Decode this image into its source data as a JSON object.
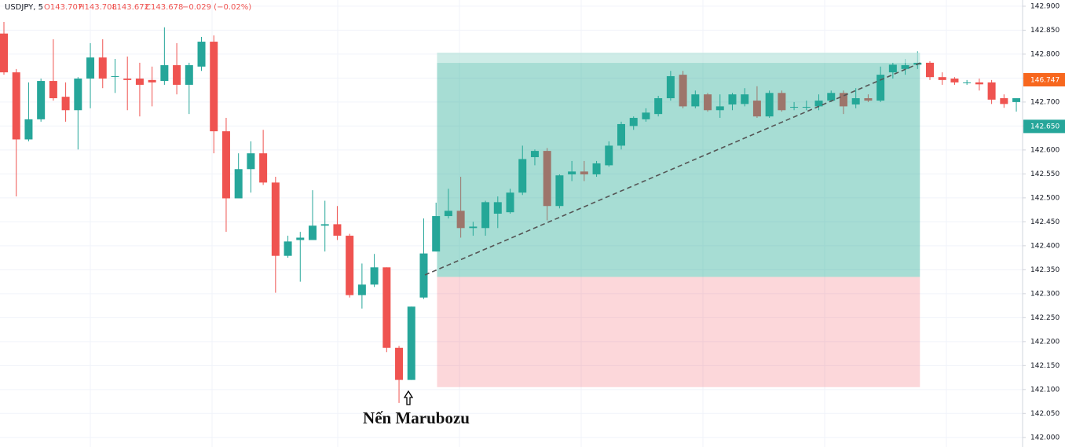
{
  "header": {
    "symbol": "USDJPY, 5",
    "open": "O143.707",
    "high": "H143.708",
    "low": "L143.672",
    "close": "C143.678",
    "change": "−0.029 (−0.02%)"
  },
  "current_price_tag": "146.747",
  "chart_data": {
    "type": "candlestick",
    "annotation": "Nến Marubozu",
    "up_color": "#26a69a",
    "down_color": "#ef5350",
    "ylim": [
      141.98,
      142.913
    ],
    "yticks": [
      {
        "value": 142,
        "label": "142.000"
      },
      {
        "value": 142.05,
        "label": "142.050"
      },
      {
        "value": 142.1,
        "label": "142.100"
      },
      {
        "value": 142.15,
        "label": "142.150"
      },
      {
        "value": 142.2,
        "label": "142.200"
      },
      {
        "value": 142.25,
        "label": "142.250"
      },
      {
        "value": 142.3,
        "label": "142.300"
      },
      {
        "value": 142.35,
        "label": "142.350"
      },
      {
        "value": 142.4,
        "label": "142.400"
      },
      {
        "value": 142.45,
        "label": "142.450"
      },
      {
        "value": 142.5,
        "label": "142.500"
      },
      {
        "value": 142.55,
        "label": "142.550"
      },
      {
        "value": 142.6,
        "label": "142.600"
      },
      {
        "value": 142.65,
        "label": "142.650"
      },
      {
        "value": 142.7,
        "label": "142.700"
      },
      {
        "value": 142.75,
        "label": "142.750"
      },
      {
        "value": 142.8,
        "label": "142.800"
      },
      {
        "value": 142.85,
        "label": "142.850"
      },
      {
        "value": 142.9,
        "label": "142.900"
      }
    ],
    "grid": true,
    "price_tag": {
      "value": 142.65,
      "label": "142.650",
      "color": "#26a69a"
    },
    "position": {
      "target": 142.803,
      "entry": 142.335,
      "stop": 142.105
    },
    "ohlc": [
      [
        142.843,
        142.867,
        142.757,
        142.762
      ],
      [
        142.762,
        142.769,
        142.503,
        142.622
      ],
      [
        142.622,
        142.741,
        142.618,
        142.664
      ],
      [
        142.664,
        142.749,
        142.659,
        142.744
      ],
      [
        142.744,
        142.831,
        142.703,
        142.708
      ],
      [
        142.711,
        142.741,
        142.659,
        142.683
      ],
      [
        142.683,
        142.752,
        142.601,
        142.749
      ],
      [
        142.749,
        142.823,
        142.687,
        142.793
      ],
      [
        142.793,
        142.831,
        142.729,
        142.749
      ],
      [
        142.754,
        142.79,
        142.719,
        142.754
      ],
      [
        142.749,
        142.795,
        142.683,
        142.746
      ],
      [
        142.749,
        142.782,
        142.67,
        142.736
      ],
      [
        142.746,
        142.774,
        142.691,
        142.741
      ],
      [
        142.744,
        142.856,
        142.736,
        142.777
      ],
      [
        142.777,
        142.823,
        142.716,
        142.736
      ],
      [
        142.736,
        142.782,
        142.675,
        142.777
      ],
      [
        142.774,
        142.836,
        142.765,
        142.826
      ],
      [
        142.826,
        142.839,
        142.593,
        142.639
      ],
      [
        142.639,
        142.667,
        142.429,
        142.499
      ],
      [
        142.499,
        142.593,
        142.499,
        142.56
      ],
      [
        142.56,
        142.618,
        142.511,
        142.593
      ],
      [
        142.593,
        142.642,
        142.527,
        142.532
      ],
      [
        142.532,
        142.544,
        142.302,
        142.379
      ],
      [
        142.379,
        142.421,
        142.375,
        142.409
      ],
      [
        142.412,
        142.429,
        142.325,
        142.417
      ],
      [
        142.412,
        142.516,
        142.412,
        142.442
      ],
      [
        142.442,
        142.494,
        142.388,
        142.445
      ],
      [
        142.445,
        142.483,
        142.412,
        142.421
      ],
      [
        142.421,
        142.425,
        142.292,
        142.297
      ],
      [
        142.297,
        142.363,
        142.269,
        142.319
      ],
      [
        142.319,
        142.383,
        142.314,
        142.355
      ],
      [
        142.355,
        142.355,
        142.178,
        142.187
      ],
      [
        142.187,
        142.191,
        142.072,
        142.12
      ],
      [
        142.12,
        142.273,
        142.12,
        142.273
      ],
      [
        142.292,
        142.457,
        142.289,
        142.384
      ],
      [
        142.388,
        142.49,
        142.388,
        142.462
      ],
      [
        142.462,
        142.519,
        142.457,
        142.473
      ],
      [
        142.473,
        142.544,
        142.417,
        142.437
      ],
      [
        142.437,
        142.45,
        142.421,
        142.44
      ],
      [
        142.437,
        142.494,
        142.421,
        142.491
      ],
      [
        142.467,
        142.503,
        142.437,
        142.491
      ],
      [
        142.47,
        142.519,
        142.467,
        142.511
      ],
      [
        142.511,
        142.609,
        142.506,
        142.581
      ],
      [
        142.585,
        142.601,
        142.568,
        142.598
      ],
      [
        142.598,
        142.604,
        142.453,
        142.483
      ],
      [
        142.483,
        142.549,
        142.478,
        142.547
      ],
      [
        142.549,
        142.577,
        142.535,
        142.555
      ],
      [
        142.555,
        142.577,
        142.535,
        142.549
      ],
      [
        142.549,
        142.577,
        142.544,
        142.572
      ],
      [
        142.568,
        142.618,
        142.565,
        142.609
      ],
      [
        142.609,
        142.659,
        142.601,
        142.654
      ],
      [
        142.65,
        142.67,
        142.642,
        142.667
      ],
      [
        142.664,
        142.687,
        142.659,
        142.678
      ],
      [
        142.675,
        142.713,
        142.67,
        142.708
      ],
      [
        142.708,
        142.765,
        142.703,
        142.754
      ],
      [
        142.757,
        142.765,
        142.687,
        142.691
      ],
      [
        142.691,
        142.724,
        142.687,
        142.716
      ],
      [
        142.716,
        142.719,
        142.68,
        142.683
      ],
      [
        142.683,
        142.716,
        142.667,
        142.691
      ],
      [
        142.695,
        142.719,
        142.683,
        142.716
      ],
      [
        142.696,
        142.729,
        142.691,
        142.716
      ],
      [
        142.703,
        142.733,
        142.667,
        142.67
      ],
      [
        142.67,
        142.724,
        142.667,
        142.719
      ],
      [
        142.719,
        142.724,
        142.68,
        142.683
      ],
      [
        142.69,
        142.7,
        142.683,
        142.69
      ],
      [
        142.69,
        142.703,
        142.683,
        142.69
      ],
      [
        142.691,
        142.716,
        142.683,
        142.703
      ],
      [
        142.703,
        142.724,
        142.7,
        142.719
      ],
      [
        142.719,
        142.724,
        142.675,
        142.691
      ],
      [
        142.695,
        142.729,
        142.687,
        142.708
      ],
      [
        142.708,
        142.716,
        142.7,
        142.703
      ],
      [
        142.703,
        142.774,
        142.7,
        142.757
      ],
      [
        142.762,
        142.782,
        142.749,
        142.778
      ],
      [
        142.769,
        142.79,
        142.757,
        142.777
      ],
      [
        142.778,
        142.806,
        142.769,
        142.782
      ],
      [
        142.782,
        142.785,
        142.746,
        142.752
      ],
      [
        142.752,
        142.762,
        142.736,
        142.746
      ],
      [
        142.749,
        142.752,
        142.736,
        142.741
      ],
      [
        142.741,
        142.746,
        142.736,
        142.741
      ],
      [
        142.741,
        142.749,
        142.724,
        142.737
      ],
      [
        142.741,
        142.746,
        142.696,
        142.705
      ],
      [
        142.708,
        142.716,
        142.688,
        142.696
      ],
      [
        142.7,
        142.708,
        142.68,
        142.708
      ]
    ]
  }
}
